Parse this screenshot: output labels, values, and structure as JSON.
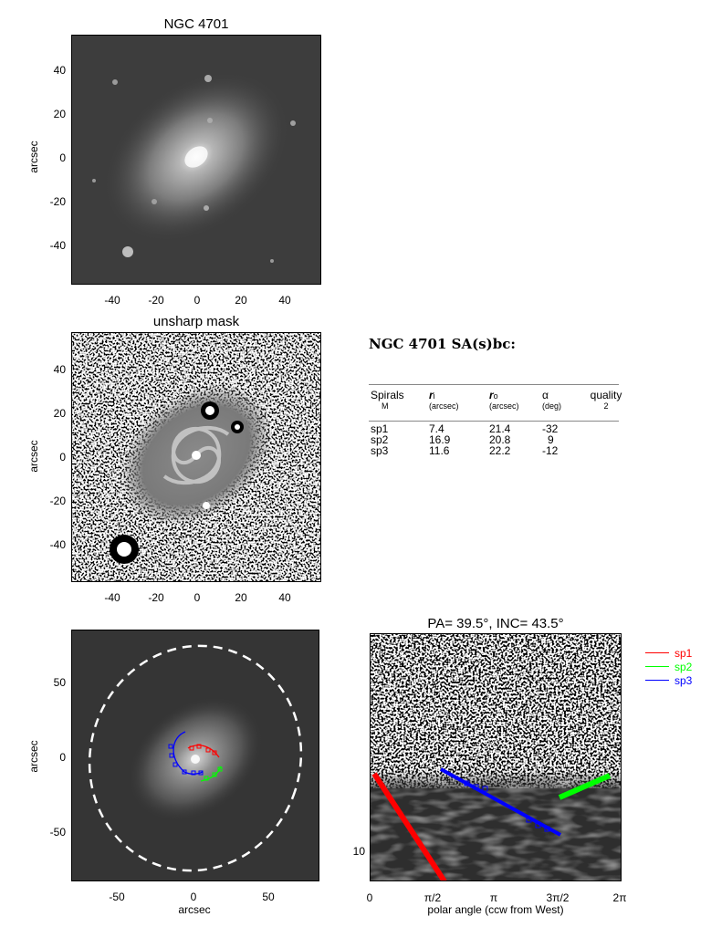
{
  "panel1": {
    "title": "NGC 4701",
    "ylabel": "arcsec",
    "xticks": [
      "-40",
      "-20",
      "0",
      "20",
      "40"
    ],
    "yticks": [
      "40",
      "20",
      "0",
      "-20",
      "-40"
    ]
  },
  "panel2": {
    "title": "unsharp mask",
    "ylabel": "arcsec",
    "xticks": [
      "-40",
      "-20",
      "0",
      "20",
      "40"
    ],
    "yticks": [
      "40",
      "20",
      "0",
      "-20",
      "-40"
    ]
  },
  "panel3": {
    "xlabel": "arcsec",
    "ylabel": "arcsec",
    "xticks": [
      "-50",
      "0",
      "50"
    ],
    "yticks": [
      "50",
      "0",
      "-50"
    ]
  },
  "panel4": {
    "title": "PA=  39.5°, INC=  43.5°",
    "xlabel": "polar angle (ccw from West)",
    "xticks": [
      "0",
      "π/2",
      "π",
      "3π/2",
      "2π"
    ],
    "yticks": [
      "10"
    ]
  },
  "info": {
    "heading": "NGC 4701  SA(s)bc:",
    "headers": {
      "spirals": "Spirals",
      "m": "M",
      "ri": "r",
      "ri_sub": "i",
      "ri_unit": "(arcsec)",
      "ro": "r",
      "ro_sub": "o",
      "ro_unit": "(arcsec)",
      "alpha": "α",
      "alpha_unit": "(deg)",
      "quality": "quality",
      "quality_val": "2"
    },
    "rows": [
      {
        "name": "sp1",
        "ri": "7.4",
        "ro": "21.4",
        "alpha": "-32"
      },
      {
        "name": "sp2",
        "ri": "16.9",
        "ro": "20.8",
        "alpha": "9"
      },
      {
        "name": "sp3",
        "ri": "11.6",
        "ro": "22.2",
        "alpha": "-12"
      }
    ]
  },
  "legend": [
    {
      "name": "sp1",
      "color": "#ff0000"
    },
    {
      "name": "sp2",
      "color": "#00ff00"
    },
    {
      "name": "sp3",
      "color": "#0000ff"
    }
  ]
}
